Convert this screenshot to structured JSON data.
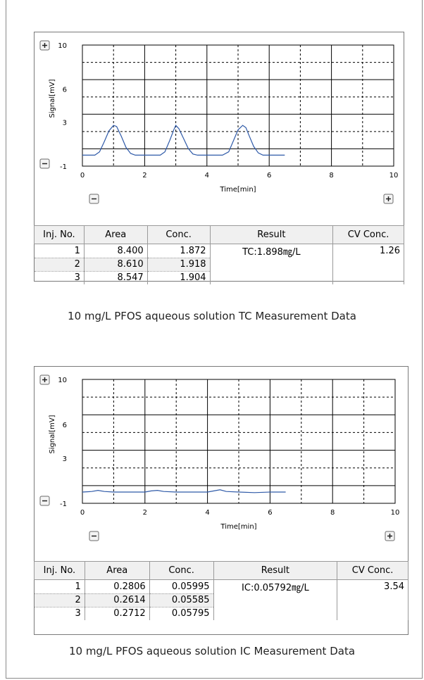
{
  "chart_data": [
    {
      "type": "line",
      "xlabel": "Time[min]",
      "ylabel": "Signal[mV]",
      "xlim": [
        0,
        10
      ],
      "ylim": [
        -1,
        10
      ],
      "x_ticks": [
        "0",
        "2",
        "4",
        "6",
        "8",
        "10"
      ],
      "y_ticks": [
        "10",
        "6",
        "3",
        "-1"
      ],
      "grid": true,
      "series": [
        {
          "color": "#2f5aa8",
          "x": [
            0,
            0.2,
            0.4,
            0.55,
            0.7,
            0.85,
            1.0,
            1.1,
            1.25,
            1.4,
            1.55,
            1.7,
            1.9,
            2.1,
            2.3,
            2.5,
            2.65,
            2.8,
            2.95,
            3.0,
            3.1,
            3.25,
            3.4,
            3.55,
            3.7,
            3.9,
            4.2,
            4.5,
            4.7,
            4.85,
            5.0,
            5.15,
            5.25,
            5.35,
            5.5,
            5.65,
            5.8,
            6.0,
            6.5
          ],
          "y": [
            0,
            0,
            0,
            0.3,
            1.2,
            2.2,
            2.7,
            2.6,
            1.7,
            0.7,
            0.15,
            0,
            0,
            0,
            0,
            0,
            0.3,
            1.3,
            2.4,
            2.7,
            2.4,
            1.5,
            0.6,
            0.1,
            0,
            0,
            0,
            0,
            0.3,
            1.3,
            2.3,
            2.7,
            2.5,
            1.8,
            0.8,
            0.2,
            0,
            0,
            0
          ]
        }
      ]
    },
    {
      "type": "line",
      "xlabel": "Time[min]",
      "ylabel": "Signal[mV]",
      "xlim": [
        0,
        10
      ],
      "ylim": [
        -1,
        10
      ],
      "x_ticks": [
        "0",
        "2",
        "4",
        "6",
        "8",
        "10"
      ],
      "y_ticks": [
        "10",
        "6",
        "3",
        "-1"
      ],
      "grid": true,
      "series": [
        {
          "color": "#2f5aa8",
          "x": [
            0,
            0.3,
            0.5,
            0.7,
            1.0,
            1.5,
            2.0,
            2.2,
            2.4,
            2.6,
            3.0,
            3.5,
            4.0,
            4.2,
            4.4,
            4.6,
            5.0,
            5.5,
            6.0,
            6.5
          ],
          "y": [
            0,
            0.05,
            0.15,
            0.05,
            0,
            0,
            0,
            0.1,
            0.15,
            0.05,
            0,
            0,
            0,
            0.1,
            0.2,
            0.05,
            0,
            -0.05,
            0,
            0
          ]
        }
      ]
    }
  ],
  "tables": [
    {
      "headers": [
        "Inj. No.",
        "Area",
        "Conc.",
        "Result",
        "CV Conc."
      ],
      "rows": [
        [
          "1",
          "8.400",
          "1.872",
          "TC:1.898㎎/L",
          "1.26"
        ],
        [
          "2",
          "8.610",
          "1.918",
          "",
          ""
        ],
        [
          "3",
          "8.547",
          "1.904",
          "",
          ""
        ]
      ]
    },
    {
      "headers": [
        "Inj. No.",
        "Area",
        "Conc.",
        "Result",
        "CV Conc."
      ],
      "rows": [
        [
          "1",
          "0.2806",
          "0.05995",
          "IC:0.05792㎎/L",
          "3.54"
        ],
        [
          "2",
          "0.2614",
          "0.05585",
          "",
          ""
        ],
        [
          "3",
          "0.2712",
          "0.05795",
          "",
          ""
        ]
      ]
    }
  ],
  "captions": [
    "10 mg/L PFOS aqueous solution  TC Measurement Data",
    "10 mg/L PFOS aqueous solution  IC Measurement Data"
  ],
  "icons": {
    "zoom_in": "plus-icon",
    "zoom_out": "minus-icon"
  },
  "colors": {
    "trace": "#2f5aa8",
    "header_bg": "#f0f0f0"
  }
}
